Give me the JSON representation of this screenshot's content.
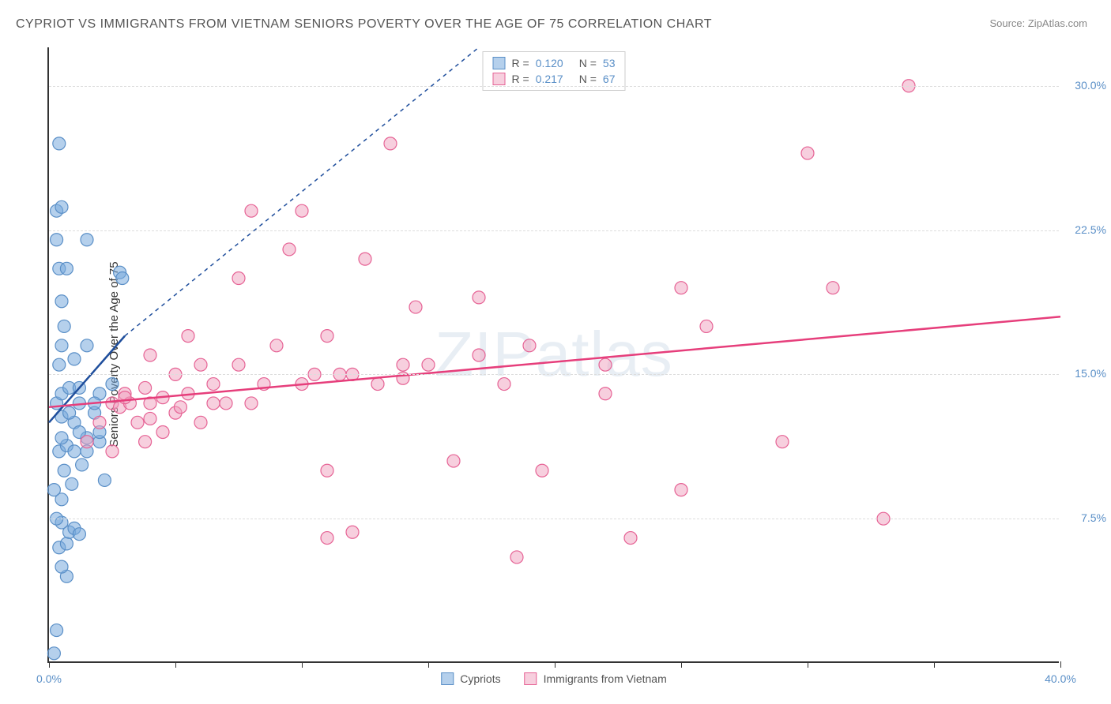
{
  "title": "CYPRIOT VS IMMIGRANTS FROM VIETNAM SENIORS POVERTY OVER THE AGE OF 75 CORRELATION CHART",
  "source": "Source: ZipAtlas.com",
  "watermark": "ZIPatlas",
  "y_axis_label": "Seniors Poverty Over the Age of 75",
  "chart": {
    "type": "scatter",
    "xlim": [
      0,
      40
    ],
    "ylim": [
      0,
      32
    ],
    "x_ticks": [
      0,
      5,
      10,
      15,
      20,
      25,
      30,
      35,
      40
    ],
    "x_tick_labels": {
      "0": "0.0%",
      "40": "40.0%"
    },
    "y_ticks": [
      7.5,
      15.0,
      22.5,
      30.0
    ],
    "y_tick_labels": [
      "7.5%",
      "15.0%",
      "22.5%",
      "30.0%"
    ],
    "grid_color": "#dddddd",
    "background_color": "#ffffff",
    "axis_color": "#333333",
    "tick_label_color": "#5a8fc7",
    "series": [
      {
        "name": "Cypriots",
        "r_value": "0.120",
        "n_value": "53",
        "marker_color": "rgba(120,170,220,0.55)",
        "marker_stroke": "#5a8fc7",
        "marker_radius": 8,
        "line_color": "#1f4e9c",
        "line_dash_ext": "5,5",
        "regression": {
          "x1": 0,
          "y1": 12.5,
          "x2": 3,
          "y2": 17.0,
          "ext_x2": 17,
          "ext_y2": 32
        },
        "points": [
          [
            0.2,
            0.5
          ],
          [
            0.3,
            1.7
          ],
          [
            0.7,
            4.5
          ],
          [
            0.5,
            5.0
          ],
          [
            0.4,
            6.0
          ],
          [
            0.7,
            6.2
          ],
          [
            0.8,
            6.8
          ],
          [
            0.5,
            7.3
          ],
          [
            0.3,
            7.5
          ],
          [
            1.0,
            7.0
          ],
          [
            1.2,
            6.7
          ],
          [
            0.5,
            8.5
          ],
          [
            0.2,
            9.0
          ],
          [
            0.9,
            9.3
          ],
          [
            0.6,
            10.0
          ],
          [
            1.3,
            10.3
          ],
          [
            0.4,
            11.0
          ],
          [
            0.7,
            11.3
          ],
          [
            1.0,
            11.0
          ],
          [
            0.5,
            11.7
          ],
          [
            1.5,
            11.7
          ],
          [
            1.0,
            12.5
          ],
          [
            0.5,
            12.8
          ],
          [
            0.8,
            13.0
          ],
          [
            0.3,
            13.5
          ],
          [
            1.2,
            13.5
          ],
          [
            0.5,
            14.0
          ],
          [
            0.8,
            14.3
          ],
          [
            1.2,
            14.3
          ],
          [
            0.4,
            15.5
          ],
          [
            1.0,
            15.8
          ],
          [
            0.5,
            16.5
          ],
          [
            1.5,
            16.5
          ],
          [
            0.6,
            17.5
          ],
          [
            1.8,
            13.0
          ],
          [
            2.0,
            11.5
          ],
          [
            2.0,
            14.0
          ],
          [
            2.2,
            9.5
          ],
          [
            2.8,
            20.3
          ],
          [
            2.9,
            20.0
          ],
          [
            0.5,
            18.8
          ],
          [
            0.4,
            20.5
          ],
          [
            0.7,
            20.5
          ],
          [
            0.3,
            22.0
          ],
          [
            1.5,
            22.0
          ],
          [
            0.3,
            23.5
          ],
          [
            0.5,
            23.7
          ],
          [
            0.4,
            27.0
          ],
          [
            2.5,
            14.5
          ],
          [
            2.0,
            12.0
          ],
          [
            1.5,
            11.0
          ],
          [
            1.2,
            12.0
          ],
          [
            1.8,
            13.5
          ]
        ]
      },
      {
        "name": "Immigrants from Vietnam",
        "r_value": "0.217",
        "n_value": "67",
        "marker_color": "rgba(240,160,190,0.5)",
        "marker_stroke": "#e66395",
        "marker_radius": 8,
        "line_color": "#e63e7b",
        "regression": {
          "x1": 0,
          "y1": 13.3,
          "x2": 40,
          "y2": 18.0
        },
        "points": [
          [
            1.5,
            11.5
          ],
          [
            2.0,
            12.5
          ],
          [
            2.5,
            13.5
          ],
          [
            2.8,
            13.3
          ],
          [
            2.5,
            11.0
          ],
          [
            3.0,
            14.0
          ],
          [
            3.2,
            13.5
          ],
          [
            3.5,
            12.5
          ],
          [
            3.0,
            13.8
          ],
          [
            3.8,
            14.3
          ],
          [
            4.0,
            13.5
          ],
          [
            4.5,
            13.8
          ],
          [
            4.0,
            12.7
          ],
          [
            3.8,
            11.5
          ],
          [
            4.5,
            12.0
          ],
          [
            5.0,
            13.0
          ],
          [
            5.5,
            14.0
          ],
          [
            5.2,
            13.3
          ],
          [
            5.5,
            17.0
          ],
          [
            6.5,
            13.5
          ],
          [
            6.5,
            14.5
          ],
          [
            6.0,
            12.5
          ],
          [
            7.0,
            13.5
          ],
          [
            7.5,
            20.0
          ],
          [
            8.0,
            23.5
          ],
          [
            8.0,
            13.5
          ],
          [
            8.5,
            14.5
          ],
          [
            9.5,
            21.5
          ],
          [
            10.0,
            23.5
          ],
          [
            10.0,
            14.5
          ],
          [
            10.5,
            15.0
          ],
          [
            11.0,
            10.0
          ],
          [
            11.0,
            6.5
          ],
          [
            11.0,
            17.0
          ],
          [
            11.5,
            15.0
          ],
          [
            12.0,
            6.8
          ],
          [
            12.5,
            21.0
          ],
          [
            12.0,
            15.0
          ],
          [
            13.0,
            14.5
          ],
          [
            13.5,
            27.0
          ],
          [
            14.0,
            15.5
          ],
          [
            14.0,
            14.8
          ],
          [
            14.5,
            18.5
          ],
          [
            15.0,
            15.5
          ],
          [
            16.0,
            10.5
          ],
          [
            17.0,
            19.0
          ],
          [
            17.0,
            16.0
          ],
          [
            18.0,
            14.5
          ],
          [
            18.5,
            5.5
          ],
          [
            19.0,
            16.5
          ],
          [
            19.5,
            10.0
          ],
          [
            22.0,
            14.0
          ],
          [
            23.0,
            6.5
          ],
          [
            25.0,
            9.0
          ],
          [
            25.0,
            19.5
          ],
          [
            26.0,
            17.5
          ],
          [
            29.0,
            11.5
          ],
          [
            30.0,
            26.5
          ],
          [
            31.0,
            19.5
          ],
          [
            33.0,
            7.5
          ],
          [
            34.0,
            30.0
          ],
          [
            22.0,
            15.5
          ],
          [
            6.0,
            15.5
          ],
          [
            7.5,
            15.5
          ],
          [
            9.0,
            16.5
          ],
          [
            5.0,
            15.0
          ],
          [
            4.0,
            16.0
          ]
        ]
      }
    ]
  },
  "legend_bottom": [
    {
      "swatch_fill": "rgba(120,170,220,0.55)",
      "swatch_stroke": "#5a8fc7",
      "label": "Cypriots"
    },
    {
      "swatch_fill": "rgba(240,160,190,0.5)",
      "swatch_stroke": "#e66395",
      "label": "Immigrants from Vietnam"
    }
  ]
}
